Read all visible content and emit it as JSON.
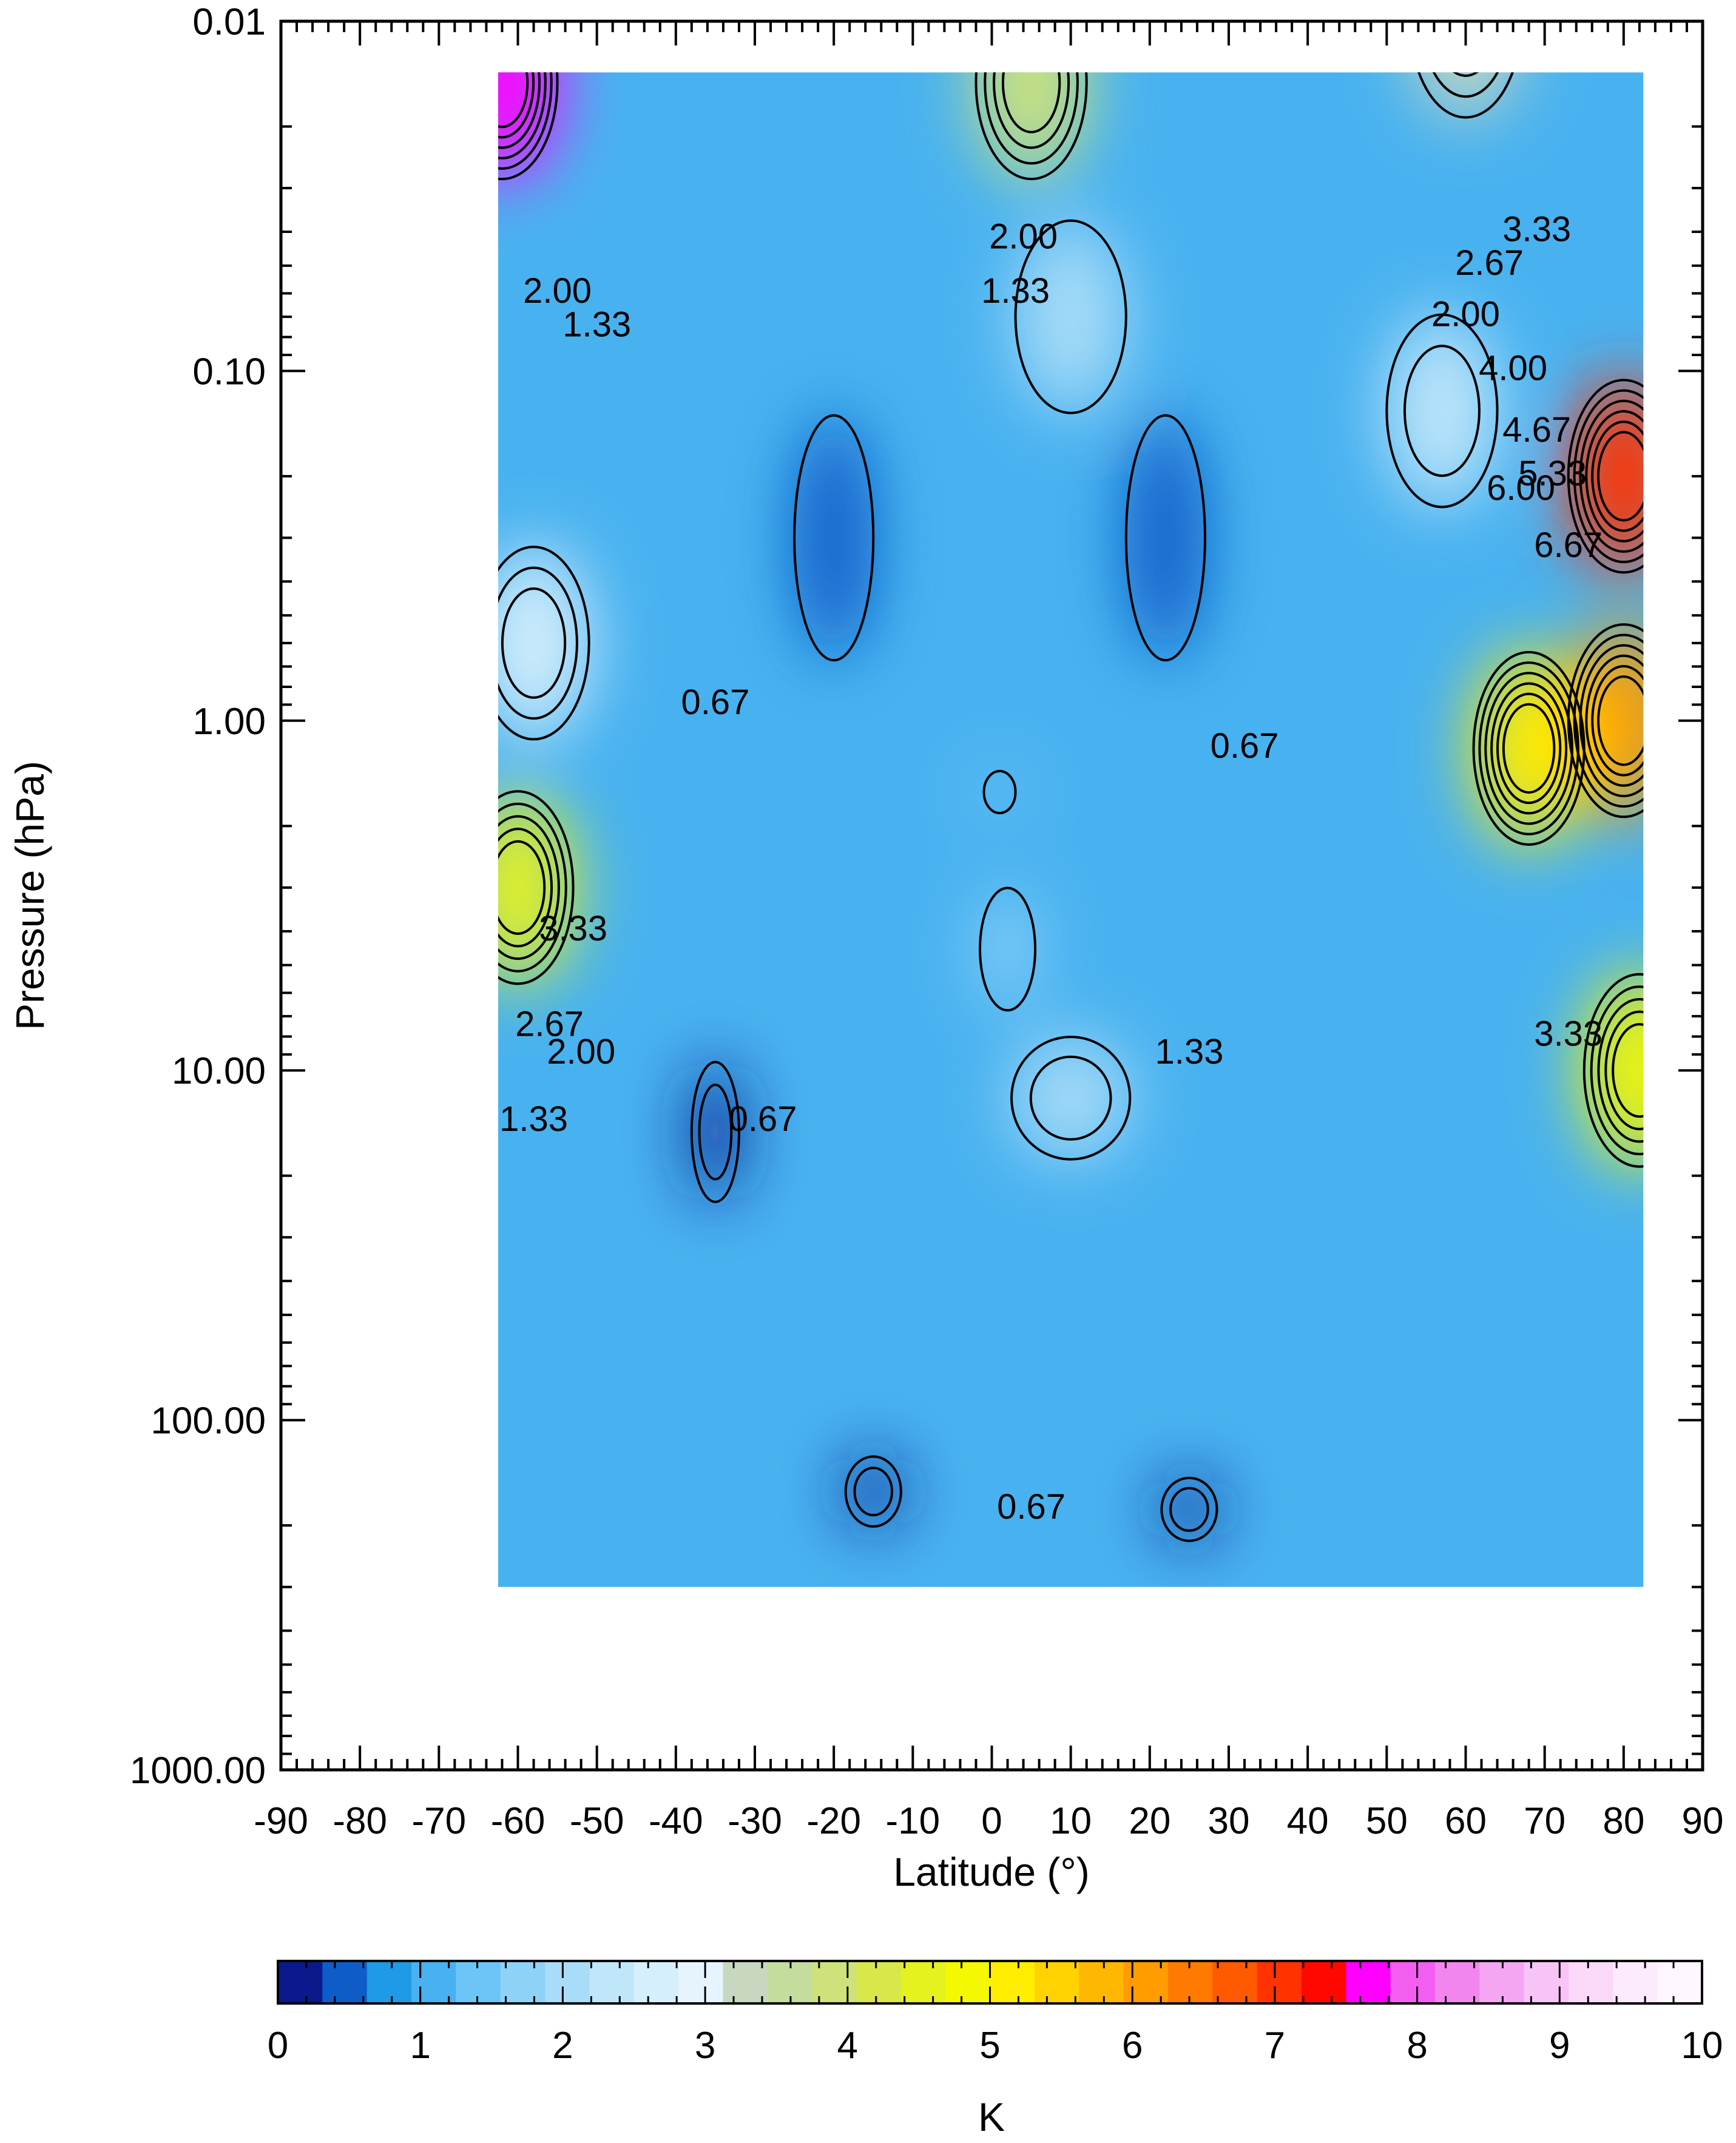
{
  "chart_data": {
    "type": "heatmap",
    "subtype": "filled-contour",
    "title": "",
    "xlabel": "Latitude (°)",
    "ylabel": "Pressure (hPa)",
    "xlim": [
      -90,
      90
    ],
    "ylim": [
      1000.0,
      0.01
    ],
    "y_scale": "log",
    "x_ticks": [
      -90,
      -80,
      -70,
      -60,
      -50,
      -40,
      -30,
      -20,
      -10,
      0,
      10,
      20,
      30,
      40,
      50,
      60,
      70,
      80,
      90
    ],
    "x_tick_labels": [
      "-90",
      "-80",
      "-70",
      "-60",
      "-50",
      "-40",
      "-30",
      "-20",
      "-10",
      "0",
      "10",
      "20",
      "30",
      "40",
      "50",
      "60",
      "70",
      "80",
      "90"
    ],
    "y_ticks": [
      0.01,
      0.1,
      1.0,
      10.0,
      100.0,
      1000.0
    ],
    "y_tick_labels": [
      "0.01",
      "0.10",
      "1.00",
      "10.00",
      "100.00",
      "1000.00"
    ],
    "data_extent": {
      "lat": [
        -62.5,
        82.5
      ],
      "pressure": [
        0.014,
        300.0
      ]
    },
    "contour_interval": 0.333,
    "contour_labels": [
      {
        "text": "2.00",
        "lat": -55,
        "p": 0.06
      },
      {
        "text": "1.33",
        "lat": -50,
        "p": 0.075
      },
      {
        "text": "2.00",
        "lat": 4,
        "p": 0.042
      },
      {
        "text": "1.33",
        "lat": 3,
        "p": 0.06
      },
      {
        "text": "0.67",
        "lat": -35,
        "p": 0.9
      },
      {
        "text": "0.67",
        "lat": 32,
        "p": 1.2
      },
      {
        "text": "3.33",
        "lat": -53,
        "p": 4.0
      },
      {
        "text": "2.67",
        "lat": -56,
        "p": 7.5
      },
      {
        "text": "2.00",
        "lat": -52,
        "p": 9.0
      },
      {
        "text": "1.33",
        "lat": -58,
        "p": 14.0
      },
      {
        "text": "0.67",
        "lat": -29,
        "p": 14.0
      },
      {
        "text": "1.33",
        "lat": 25,
        "p": 9.0
      },
      {
        "text": "0.67",
        "lat": 5,
        "p": 180.0
      },
      {
        "text": "3.33",
        "lat": 73,
        "p": 8.0
      },
      {
        "text": "2.00",
        "lat": 60,
        "p": 0.07
      },
      {
        "text": "2.67",
        "lat": 63,
        "p": 0.05
      },
      {
        "text": "3.33",
        "lat": 69,
        "p": 0.04
      },
      {
        "text": "4.00",
        "lat": 66,
        "p": 0.1
      },
      {
        "text": "4.67",
        "lat": 69,
        "p": 0.15
      },
      {
        "text": "5.33",
        "lat": 71,
        "p": 0.2
      },
      {
        "text": "6.00",
        "lat": 67,
        "p": 0.22
      },
      {
        "text": "6.67",
        "lat": 73,
        "p": 0.32
      }
    ],
    "anomalies": [
      {
        "lat": -62,
        "p": 0.015,
        "value": 7.8
      },
      {
        "lat": 80,
        "p": 0.2,
        "value": 6.9
      },
      {
        "lat": 80,
        "p": 1.0,
        "value": 6.1
      },
      {
        "lat": 68,
        "p": 1.2,
        "value": 5.0
      },
      {
        "lat": -60,
        "p": 3.0,
        "value": 4.5
      },
      {
        "lat": 82,
        "p": 10.0,
        "value": 4.7
      },
      {
        "lat": 5,
        "p": 0.015,
        "value": 4.0
      },
      {
        "lat": 60,
        "p": 0.01,
        "value": 3.2
      },
      {
        "lat": -58,
        "p": 0.6,
        "value": 2.8
      },
      {
        "lat": 57,
        "p": 0.13,
        "value": 2.3
      },
      {
        "lat": 10,
        "p": 0.07,
        "value": 2.0
      },
      {
        "lat": -20,
        "p": 0.3,
        "value": 0.35,
        "width": 10,
        "height": 0.7
      },
      {
        "lat": 22,
        "p": 0.3,
        "value": 0.4,
        "width": 10,
        "height": 0.7
      },
      {
        "lat": -35,
        "p": 15.0,
        "value": 0.1,
        "width": 6,
        "height": 0.4
      },
      {
        "lat": -15,
        "p": 160.0,
        "value": 0.1,
        "width": 7,
        "height": 0.2
      },
      {
        "lat": 25,
        "p": 180.0,
        "value": 0.1,
        "width": 7,
        "height": 0.18
      },
      {
        "lat": 2,
        "p": 4.5,
        "value": 1.6,
        "width": 7,
        "height": 0.35
      },
      {
        "lat": 10,
        "p": 12.0,
        "value": 2.1,
        "width": 15,
        "height": 0.35
      },
      {
        "lat": 1,
        "p": 1.6,
        "value": 1.7,
        "width": 4,
        "height": 0.12
      }
    ],
    "colorbar": {
      "label": "K",
      "range": [
        0,
        10
      ],
      "ticks": [
        0,
        1,
        2,
        3,
        4,
        5,
        6,
        7,
        8,
        9,
        10
      ],
      "tick_labels": [
        "0",
        "1",
        "2",
        "3",
        "4",
        "5",
        "6",
        "7",
        "8",
        "9",
        "10"
      ],
      "colors": [
        "#0a1a8c",
        "#0d5cc8",
        "#1f9ae6",
        "#48b2f0",
        "#6cc5f6",
        "#8ed2f8",
        "#a8dcf8",
        "#c0e6fa",
        "#d6effc",
        "#e6f5fd",
        "#c8d8c0",
        "#c4dc9c",
        "#cde27a",
        "#d8e84a",
        "#e6f21e",
        "#f4f800",
        "#ffee00",
        "#ffd200",
        "#ffb800",
        "#ff9c00",
        "#ff7a00",
        "#ff5a00",
        "#ff3200",
        "#ff0800",
        "#ff00ff",
        "#f45ef0",
        "#f286ee",
        "#f4a6f2",
        "#f8c4f6",
        "#fad8f8",
        "#fcebfc",
        "#fff6ff"
      ]
    }
  }
}
